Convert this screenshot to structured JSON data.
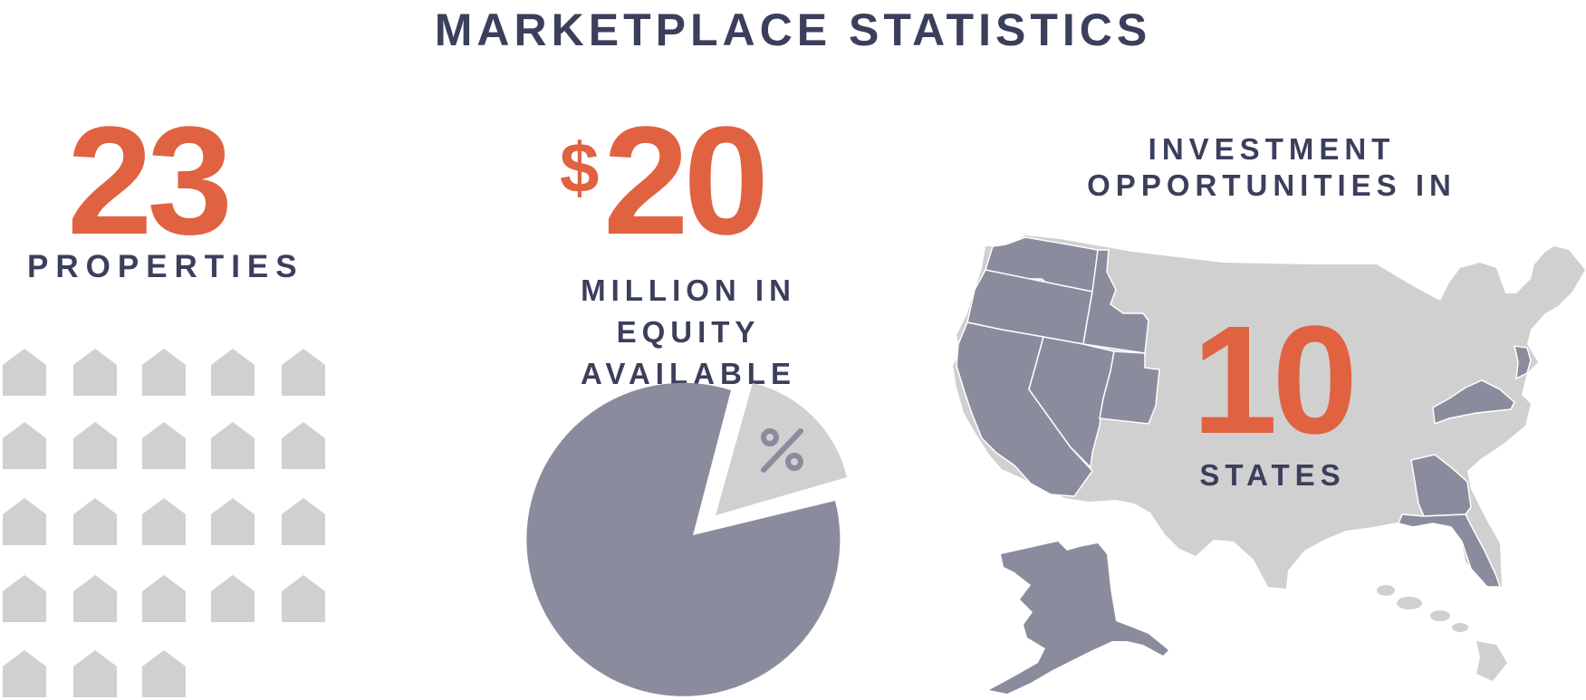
{
  "title": "MARKETPLACE STATISTICS",
  "colors": {
    "accent": "#e06240",
    "navy": "#3b3f5c",
    "slate": "#8a8c9e",
    "light_gray": "#d0d0d0"
  },
  "properties": {
    "value": "23",
    "label": "PROPERTIES",
    "house_icon_count": 23
  },
  "equity": {
    "currency_symbol": "$",
    "value": "20",
    "label_line1": "MILLION IN",
    "label_line2": "EQUITY AVAILABLE",
    "pie_symbol": "%"
  },
  "states": {
    "label_line1": "INVESTMENT",
    "label_line2": "OPPORTUNITIES IN",
    "value": "10",
    "label": "STATES"
  }
}
